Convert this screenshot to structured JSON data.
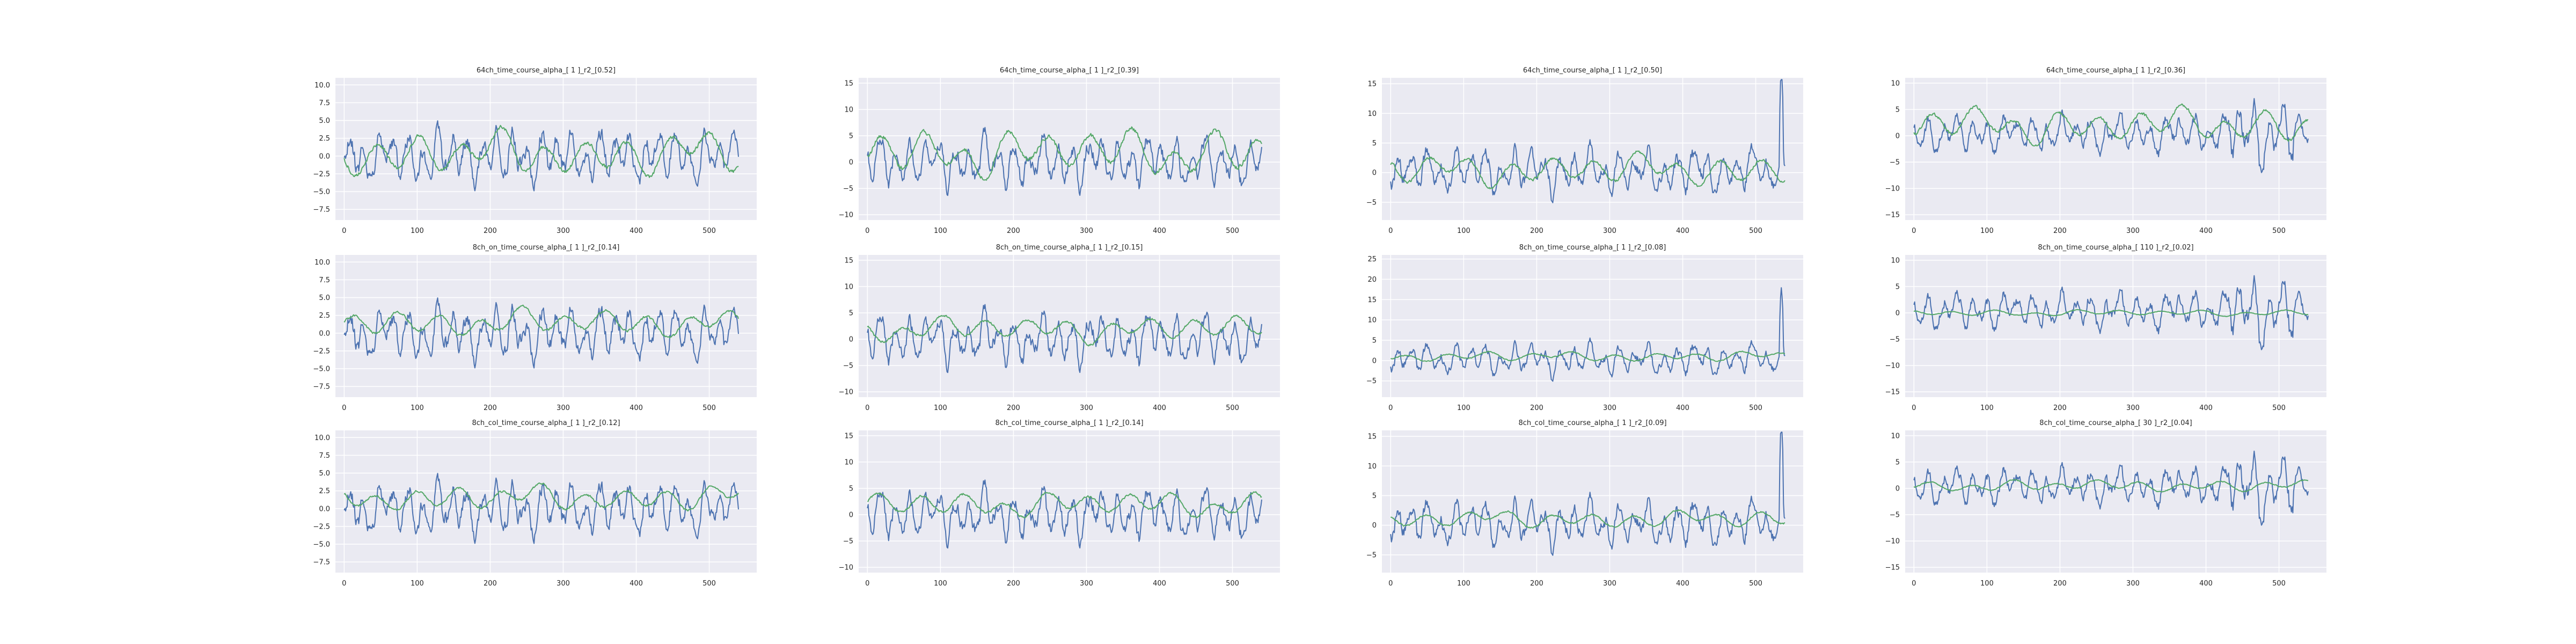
{
  "figure": {
    "colors": {
      "background": "#eaeaf2",
      "grid": "#ffffff",
      "tick_text": "#262626",
      "series_blue": "#4c72b0",
      "series_green": "#55a868"
    }
  },
  "chart_data": [
    {
      "type": "line",
      "title": "64ch_time_course_alpha_[ 1 ]_r2_[0.52]",
      "xlim": [
        -12,
        565
      ],
      "ylim": [
        -9,
        11
      ],
      "xticks": [
        0,
        100,
        200,
        300,
        400,
        500
      ],
      "yticks": [
        -7.5,
        -5.0,
        -2.5,
        0.0,
        2.5,
        5.0,
        7.5,
        10.0
      ],
      "yticklabels": [
        "−7.5",
        "−5.0",
        "−2.5",
        "0.0",
        "2.5",
        "5.0",
        "7.5",
        "10.0"
      ],
      "grid": true,
      "series": [
        {
          "color": "#4c72b0",
          "seed": 11,
          "amp": 3.2,
          "mean": 0.0,
          "burst": 0.0
        },
        {
          "color": "#55a868",
          "seed": 21,
          "amp": 2.6,
          "mean": 0.3,
          "burst": 0.0,
          "smooth": true
        }
      ]
    },
    {
      "type": "line",
      "title": "64ch_time_course_alpha_[ 1 ]_r2_[0.39]",
      "xlim": [
        -12,
        565
      ],
      "ylim": [
        -11,
        16
      ],
      "xticks": [
        0,
        100,
        200,
        300,
        400,
        500
      ],
      "yticks": [
        -10,
        -5,
        0,
        5,
        10,
        15
      ],
      "yticklabels": [
        "−10",
        "−5",
        "0",
        "5",
        "10",
        "15"
      ],
      "grid": true,
      "series": [
        {
          "color": "#4c72b0",
          "seed": 12,
          "amp": 4.0,
          "mean": 0.0,
          "burst": 0.0
        },
        {
          "color": "#55a868",
          "seed": 22,
          "amp": 3.8,
          "mean": 2.0,
          "burst": 0.0,
          "smooth": true
        }
      ]
    },
    {
      "type": "line",
      "title": "64ch_time_course_alpha_[ 1 ]_r2_[0.50]",
      "xlim": [
        -12,
        565
      ],
      "ylim": [
        -8,
        16
      ],
      "xticks": [
        0,
        100,
        200,
        300,
        400,
        500
      ],
      "yticks": [
        -5,
        0,
        5,
        10,
        15
      ],
      "yticklabels": [
        "−5",
        "0",
        "5",
        "10",
        "15"
      ],
      "grid": true,
      "series": [
        {
          "color": "#4c72b0",
          "seed": 13,
          "amp": 3.2,
          "mean": 0.3,
          "burst": 0.0,
          "spike": true
        },
        {
          "color": "#55a868",
          "seed": 23,
          "amp": 2.2,
          "mean": 0.5,
          "burst": 0.0,
          "smooth": true
        }
      ]
    },
    {
      "type": "line",
      "title": "64ch_time_course_alpha_[ 1 ]_r2_[0.36]",
      "xlim": [
        -12,
        565
      ],
      "ylim": [
        -16,
        11
      ],
      "xticks": [
        0,
        100,
        200,
        300,
        400,
        500
      ],
      "yticks": [
        -15,
        -10,
        -5,
        0,
        5,
        10
      ],
      "yticklabels": [
        "−15",
        "−10",
        "−5",
        "0",
        "5",
        "10"
      ],
      "grid": true,
      "series": [
        {
          "color": "#4c72b0",
          "seed": 14,
          "amp": 3.0,
          "mean": 0.5,
          "burst": 1.0
        },
        {
          "color": "#55a868",
          "seed": 24,
          "amp": 2.8,
          "mean": 2.0,
          "burst": 0.0,
          "smooth": true
        }
      ]
    },
    {
      "type": "line",
      "title": "8ch_on_time_course_alpha_[ 1 ]_r2_[0.14]",
      "xlim": [
        -12,
        565
      ],
      "ylim": [
        -9,
        11
      ],
      "xticks": [
        0,
        100,
        200,
        300,
        400,
        500
      ],
      "yticks": [
        -7.5,
        -5.0,
        -2.5,
        0.0,
        2.5,
        5.0,
        7.5,
        10.0
      ],
      "yticklabels": [
        "−7.5",
        "−5.0",
        "−2.5",
        "0.0",
        "2.5",
        "5.0",
        "7.5",
        "10.0"
      ],
      "grid": true,
      "series": [
        {
          "color": "#4c72b0",
          "seed": 11,
          "amp": 3.2,
          "mean": 0.0,
          "burst": 0.0
        },
        {
          "color": "#55a868",
          "seed": 31,
          "amp": 1.6,
          "mean": 1.5,
          "burst": 0.0,
          "smooth": true
        }
      ]
    },
    {
      "type": "line",
      "title": "8ch_on_time_course_alpha_[ 1 ]_r2_[0.15]",
      "xlim": [
        -12,
        565
      ],
      "ylim": [
        -11,
        16
      ],
      "xticks": [
        0,
        100,
        200,
        300,
        400,
        500
      ],
      "yticks": [
        -10,
        -5,
        0,
        5,
        10,
        15
      ],
      "yticklabels": [
        "−10",
        "−5",
        "0",
        "5",
        "10",
        "15"
      ],
      "grid": true,
      "series": [
        {
          "color": "#4c72b0",
          "seed": 12,
          "amp": 4.0,
          "mean": 0.0,
          "burst": 0.0
        },
        {
          "color": "#55a868",
          "seed": 32,
          "amp": 2.0,
          "mean": 2.0,
          "burst": 0.0,
          "smooth": true
        }
      ]
    },
    {
      "type": "line",
      "title": "8ch_on_time_course_alpha_[ 1 ]_r2_[0.08]",
      "xlim": [
        -12,
        565
      ],
      "ylim": [
        -9,
        26
      ],
      "xticks": [
        0,
        100,
        200,
        300,
        400,
        500
      ],
      "yticks": [
        -5,
        0,
        5,
        10,
        15,
        20,
        25
      ],
      "yticklabels": [
        "−5",
        "0",
        "5",
        "10",
        "15",
        "20",
        "25"
      ],
      "grid": true,
      "series": [
        {
          "color": "#4c72b0",
          "seed": 13,
          "amp": 3.2,
          "mean": 0.3,
          "burst": 0.0,
          "spike": true
        },
        {
          "color": "#55a868",
          "seed": 33,
          "amp": 1.0,
          "mean": 1.0,
          "burst": 0.0,
          "smooth": true
        }
      ]
    },
    {
      "type": "line",
      "title": "8ch_on_time_course_alpha_[ 110 ]_r2_[0.02]",
      "xlim": [
        -12,
        565
      ],
      "ylim": [
        -16,
        11
      ],
      "xticks": [
        0,
        100,
        200,
        300,
        400,
        500
      ],
      "yticks": [
        -15,
        -10,
        -5,
        0,
        5,
        10
      ],
      "yticklabels": [
        "−15",
        "−10",
        "−5",
        "0",
        "5",
        "10"
      ],
      "grid": true,
      "series": [
        {
          "color": "#4c72b0",
          "seed": 14,
          "amp": 3.0,
          "mean": 0.5,
          "burst": 1.0
        },
        {
          "color": "#55a868",
          "seed": 34,
          "amp": 0.5,
          "mean": 0.0,
          "burst": 0.0,
          "smooth": true
        }
      ]
    },
    {
      "type": "line",
      "title": "8ch_col_time_course_alpha_[ 1 ]_r2_[0.12]",
      "xlim": [
        -12,
        565
      ],
      "ylim": [
        -9,
        11
      ],
      "xticks": [
        0,
        100,
        200,
        300,
        400,
        500
      ],
      "yticks": [
        -7.5,
        -5.0,
        -2.5,
        0.0,
        2.5,
        5.0,
        7.5,
        10.0
      ],
      "yticklabels": [
        "−7.5",
        "−5.0",
        "−2.5",
        "0.0",
        "2.5",
        "5.0",
        "7.5",
        "10.0"
      ],
      "grid": true,
      "series": [
        {
          "color": "#4c72b0",
          "seed": 11,
          "amp": 3.2,
          "mean": 0.0,
          "burst": 0.0
        },
        {
          "color": "#55a868",
          "seed": 41,
          "amp": 1.5,
          "mean": 1.5,
          "burst": 0.0,
          "smooth": true
        }
      ]
    },
    {
      "type": "line",
      "title": "8ch_col_time_course_alpha_[ 1 ]_r2_[0.14]",
      "xlim": [
        -12,
        565
      ],
      "ylim": [
        -11,
        16
      ],
      "xticks": [
        0,
        100,
        200,
        300,
        400,
        500
      ],
      "yticks": [
        -10,
        -5,
        0,
        5,
        10,
        15
      ],
      "yticklabels": [
        "−10",
        "−5",
        "0",
        "5",
        "10",
        "15"
      ],
      "grid": true,
      "series": [
        {
          "color": "#4c72b0",
          "seed": 12,
          "amp": 4.0,
          "mean": 0.0,
          "burst": 0.0
        },
        {
          "color": "#55a868",
          "seed": 42,
          "amp": 2.0,
          "mean": 2.0,
          "burst": 0.0,
          "smooth": true
        }
      ]
    },
    {
      "type": "line",
      "title": "8ch_col_time_course_alpha_[ 1 ]_r2_[0.09]",
      "xlim": [
        -12,
        565
      ],
      "ylim": [
        -8,
        16
      ],
      "xticks": [
        0,
        100,
        200,
        300,
        400,
        500
      ],
      "yticks": [
        -5,
        0,
        5,
        10,
        15
      ],
      "yticklabels": [
        "−5",
        "0",
        "5",
        "10",
        "15"
      ],
      "grid": true,
      "series": [
        {
          "color": "#4c72b0",
          "seed": 13,
          "amp": 3.2,
          "mean": 0.3,
          "burst": 0.0,
          "spike": true
        },
        {
          "color": "#55a868",
          "seed": 43,
          "amp": 1.2,
          "mean": 1.0,
          "burst": 0.0,
          "smooth": true
        }
      ]
    },
    {
      "type": "line",
      "title": "8ch_col_time_course_alpha_[ 30 ]_r2_[0.04]",
      "xlim": [
        -12,
        565
      ],
      "ylim": [
        -16,
        11
      ],
      "xticks": [
        0,
        100,
        200,
        300,
        400,
        500
      ],
      "yticks": [
        -15,
        -10,
        -5,
        0,
        5,
        10
      ],
      "yticklabels": [
        "−15",
        "−10",
        "−5",
        "0",
        "5",
        "10"
      ],
      "grid": true,
      "series": [
        {
          "color": "#4c72b0",
          "seed": 14,
          "amp": 3.0,
          "mean": 0.5,
          "burst": 1.0
        },
        {
          "color": "#55a868",
          "seed": 44,
          "amp": 0.9,
          "mean": 0.5,
          "burst": 0.0,
          "smooth": true
        }
      ]
    }
  ]
}
